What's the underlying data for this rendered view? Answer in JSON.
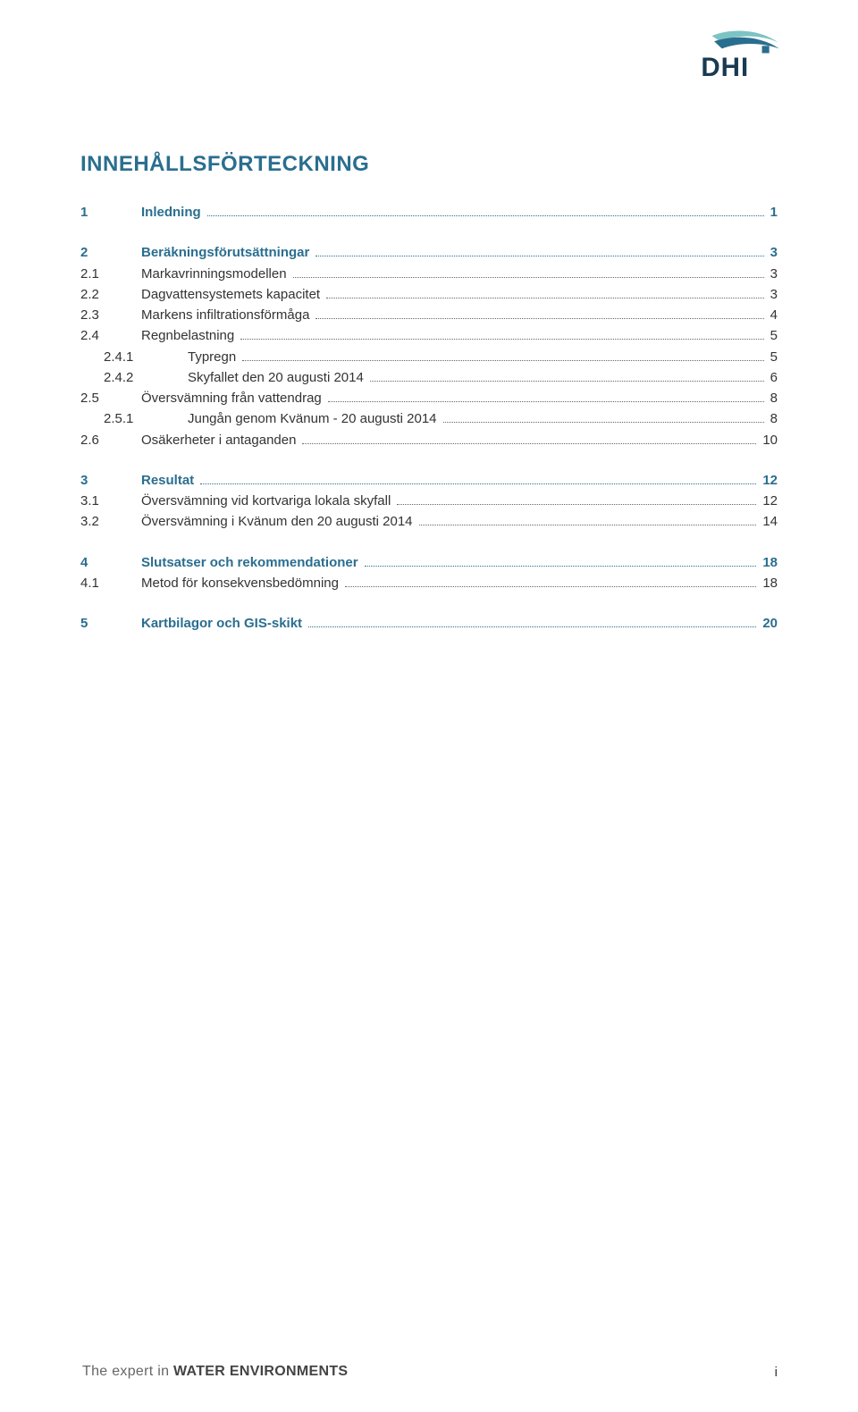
{
  "logo": {
    "text": "DHI",
    "letter_color": "#1a3a52",
    "swoosh_top_color": "#7cc3c4",
    "swoosh_bottom_color": "#2a6e8f"
  },
  "title": "INNEHÅLLSFÖRTECKNING",
  "toc": [
    {
      "block": [
        {
          "level": 1,
          "num": "1",
          "text": "Inledning",
          "page": "1"
        }
      ]
    },
    {
      "block": [
        {
          "level": 1,
          "num": "2",
          "text": "Beräkningsförutsättningar",
          "page": "3"
        },
        {
          "level": 2,
          "num": "2.1",
          "text": "Markavrinningsmodellen",
          "page": "3"
        },
        {
          "level": 2,
          "num": "2.2",
          "text": "Dagvattensystemets kapacitet",
          "page": "3"
        },
        {
          "level": 2,
          "num": "2.3",
          "text": "Markens infiltrationsförmåga",
          "page": "4"
        },
        {
          "level": 2,
          "num": "2.4",
          "text": "Regnbelastning",
          "page": "5"
        },
        {
          "level": 3,
          "num": "2.4.1",
          "text": "Typregn",
          "page": "5"
        },
        {
          "level": 3,
          "num": "2.4.2",
          "text": "Skyfallet den 20 augusti 2014",
          "page": "6"
        },
        {
          "level": 2,
          "num": "2.5",
          "text": "Översvämning från vattendrag",
          "page": "8"
        },
        {
          "level": 3,
          "num": "2.5.1",
          "text": "Jungån genom Kvänum - 20 augusti 2014",
          "page": "8"
        },
        {
          "level": 2,
          "num": "2.6",
          "text": "Osäkerheter i antaganden",
          "page": "10"
        }
      ]
    },
    {
      "block": [
        {
          "level": 1,
          "num": "3",
          "text": "Resultat",
          "page": "12"
        },
        {
          "level": 2,
          "num": "3.1",
          "text": "Översvämning vid kortvariga lokala skyfall",
          "page": "12"
        },
        {
          "level": 2,
          "num": "3.2",
          "text": "Översvämning i Kvänum den 20 augusti 2014",
          "page": "14"
        }
      ]
    },
    {
      "block": [
        {
          "level": 1,
          "num": "4",
          "text": "Slutsatser och rekommendationer",
          "page": "18"
        },
        {
          "level": 2,
          "num": "4.1",
          "text": "Metod för konsekvensbedömning",
          "page": "18"
        }
      ]
    },
    {
      "block": [
        {
          "level": 1,
          "num": "5",
          "text": "Kartbilagor och GIS-skikt",
          "page": "20"
        }
      ]
    }
  ],
  "footer": {
    "tag_plain": "The expert in ",
    "tag_bold": "WATER ENVIRONMENTS",
    "page_number": "i"
  }
}
